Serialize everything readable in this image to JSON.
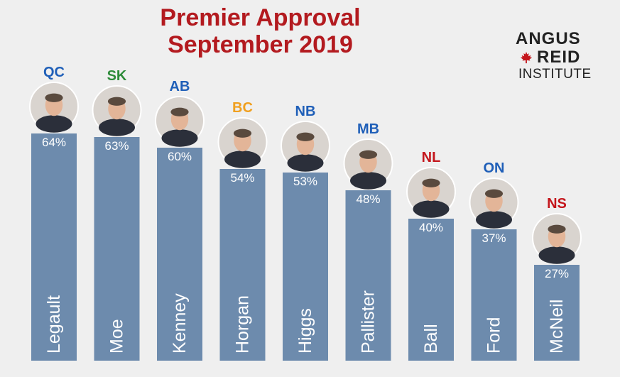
{
  "title_line1": "Premier Approval",
  "title_line2": "September 2019",
  "logo": {
    "line1": "ANGUS",
    "line2": "REID",
    "line3": "INSTITUTE",
    "leaf_color": "#c4161c"
  },
  "colors": {
    "bar": "#6d8bad",
    "label_text": "#ffffff",
    "title": "#b31a1f",
    "background": "#efefef"
  },
  "chart_data": {
    "type": "bar",
    "title": "Premier Approval September 2019",
    "categories": [
      "Legault",
      "Moe",
      "Kenney",
      "Horgan",
      "Higgs",
      "Pallister",
      "Ball",
      "Ford",
      "McNeil"
    ],
    "provinces": [
      "QC",
      "SK",
      "AB",
      "BC",
      "NB",
      "MB",
      "NL",
      "ON",
      "NS"
    ],
    "province_colors": [
      "#1f5fb8",
      "#2e8b3a",
      "#1f5fb8",
      "#f0a020",
      "#1f5fb8",
      "#1f5fb8",
      "#c4161c",
      "#1f5fb8",
      "#c4161c"
    ],
    "values": [
      64,
      63,
      60,
      54,
      53,
      48,
      40,
      37,
      27
    ],
    "value_labels": [
      "64%",
      "63%",
      "60%",
      "54%",
      "53%",
      "48%",
      "40%",
      "37%",
      "27%"
    ],
    "ylim": [
      0,
      100
    ],
    "legend": "none",
    "grid": false
  }
}
